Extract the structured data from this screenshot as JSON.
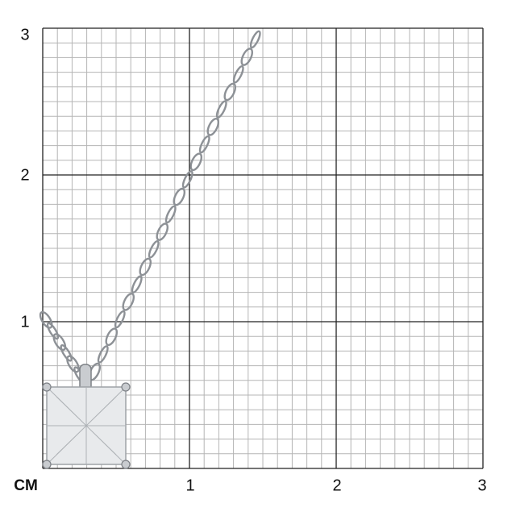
{
  "unit_label": "CM",
  "x_ticks": [
    "1",
    "2",
    "3"
  ],
  "y_ticks": [
    "1",
    "2",
    "3"
  ],
  "grid": {
    "major_per_axis": 3,
    "minor_per_major": 10
  },
  "product": "pendant-necklace-square-stone",
  "colors": {
    "minor_grid": "#b5b5b5",
    "major_grid": "#222222",
    "metal": "#c9ccd0",
    "stone": "#e8eaec"
  }
}
